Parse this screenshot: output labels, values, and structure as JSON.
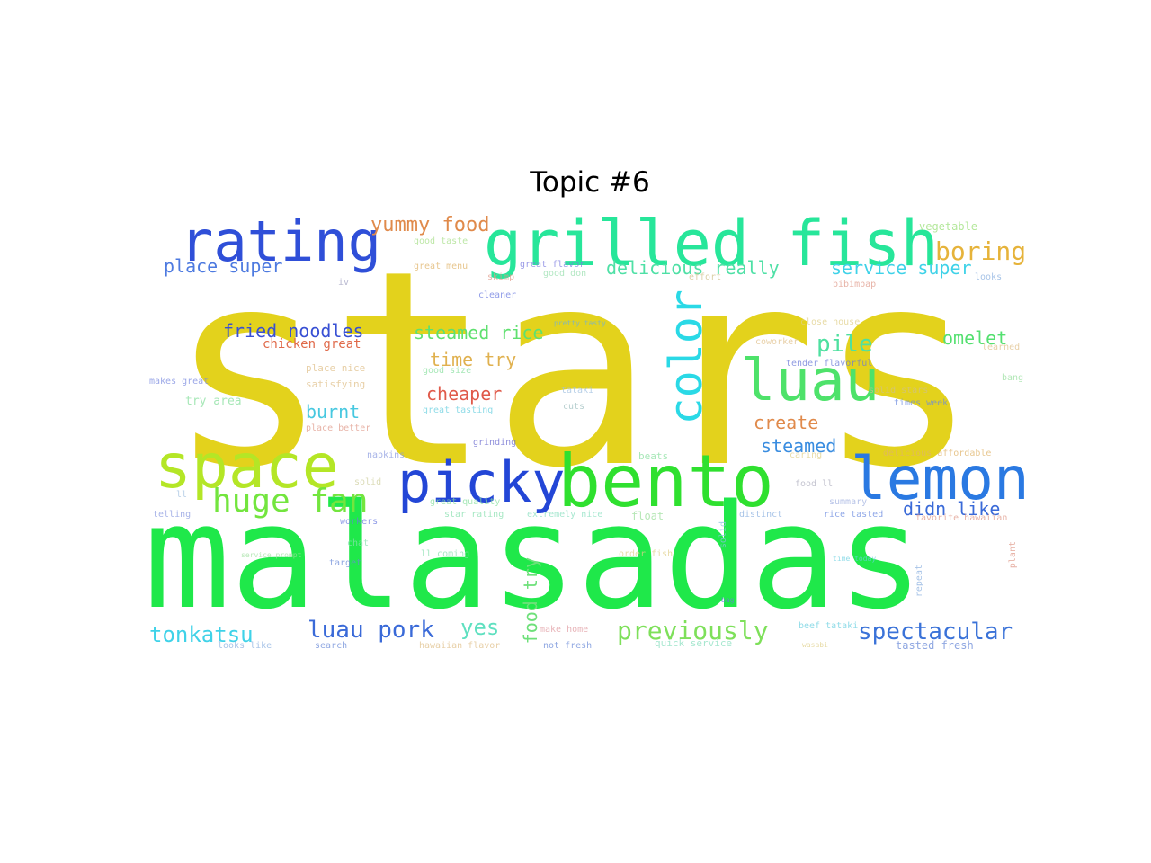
{
  "title": "Topic #6",
  "words": [
    {
      "text": "stars",
      "color": "#e3d21c"
    },
    {
      "text": "malasadas",
      "color": "#1fe84a"
    },
    {
      "text": "grilled fish",
      "color": "#27e69a"
    },
    {
      "text": "rating",
      "color": "#2f4fd8"
    },
    {
      "text": "space",
      "color": "#b4e626"
    },
    {
      "text": "picky",
      "color": "#2346d6"
    },
    {
      "text": "bento",
      "color": "#2fe02f"
    },
    {
      "text": "lemon",
      "color": "#2a79e2"
    },
    {
      "text": "luau",
      "color": "#4ee26a"
    },
    {
      "text": "color",
      "color": "#2ad9e6"
    },
    {
      "text": "huge fan",
      "color": "#73e53e"
    },
    {
      "text": "boring",
      "color": "#e6b33a"
    },
    {
      "text": "yummy food",
      "color": "#e08a4b"
    },
    {
      "text": "place super",
      "color": "#4d7ae0"
    },
    {
      "text": "delicious really",
      "color": "#4fe0a6"
    },
    {
      "text": "service super",
      "color": "#3fd2e8"
    },
    {
      "text": "fried noodles",
      "color": "#3850d4"
    },
    {
      "text": "steamed rice",
      "color": "#5fe06f"
    },
    {
      "text": "pile",
      "color": "#4ee0a0"
    },
    {
      "text": "omelet",
      "color": "#54e070"
    },
    {
      "text": "time try",
      "color": "#e0b14f"
    },
    {
      "text": "cheaper",
      "color": "#e05a4a"
    },
    {
      "text": "burnt",
      "color": "#47c8e0"
    },
    {
      "text": "create",
      "color": "#e08a4b"
    },
    {
      "text": "steamed",
      "color": "#3a8de0"
    },
    {
      "text": "didn like",
      "color": "#3a6ad8"
    },
    {
      "text": "tonkatsu",
      "color": "#3fd2e8"
    },
    {
      "text": "luau pork",
      "color": "#3a6ad8"
    },
    {
      "text": "yes",
      "color": "#5fe0c0"
    },
    {
      "text": "food try",
      "color": "#6ee07a"
    },
    {
      "text": "previously",
      "color": "#7ee05a"
    },
    {
      "text": "spectacular",
      "color": "#3a72d8"
    },
    {
      "text": "chicken great",
      "color": "#e06a4a"
    },
    {
      "text": "vegetable",
      "color": "#9be07a"
    },
    {
      "text": "good taste",
      "color": "#a8e08a"
    },
    {
      "text": "great menu",
      "color": "#e0b46a"
    },
    {
      "text": "great flavor",
      "color": "#7a7ae0"
    },
    {
      "text": "good don",
      "color": "#9ae0b0"
    },
    {
      "text": "skimp",
      "color": "#e09a8a"
    },
    {
      "text": "cleaner",
      "color": "#6a7ae0"
    },
    {
      "text": "effort",
      "color": "#d0c08a"
    },
    {
      "text": "looks",
      "color": "#8ab0e0"
    },
    {
      "text": "bibimbap",
      "color": "#e09a8a"
    },
    {
      "text": "iv",
      "color": "#a0a0c0"
    },
    {
      "text": "pretty tasty",
      "color": "#6ab0e0"
    },
    {
      "text": "close house",
      "color": "#e0d08a"
    },
    {
      "text": "coworker",
      "color": "#e0c08a"
    },
    {
      "text": "learned",
      "color": "#e0c08a"
    },
    {
      "text": "place nice",
      "color": "#e0c08a"
    },
    {
      "text": "good size",
      "color": "#8ae0a0"
    },
    {
      "text": "satisfying",
      "color": "#e0c08a"
    },
    {
      "text": "makes great",
      "color": "#7a8ae0"
    },
    {
      "text": "tender flavorful",
      "color": "#6a7ad8"
    },
    {
      "text": "bang",
      "color": "#9ae0a0"
    },
    {
      "text": "try area",
      "color": "#8ae0a0"
    },
    {
      "text": "tataki",
      "color": "#a0c0e0"
    },
    {
      "text": "solid stars",
      "color": "#d0c08a"
    },
    {
      "text": "times week",
      "color": "#6a8ae0"
    },
    {
      "text": "great tasting",
      "color": "#6ad0e0"
    },
    {
      "text": "cuts",
      "color": "#a0c0c0"
    },
    {
      "text": "place better",
      "color": "#e09a8a"
    },
    {
      "text": "grinding",
      "color": "#6a6ad0"
    },
    {
      "text": "beats",
      "color": "#8ae0a0"
    },
    {
      "text": "delicious affordable",
      "color": "#e0b46a"
    },
    {
      "text": "napkins",
      "color": "#8a9ae0"
    },
    {
      "text": "caring",
      "color": "#e0d08a"
    },
    {
      "text": "solid",
      "color": "#d0d0a0"
    },
    {
      "text": "food ll",
      "color": "#b0b0c0"
    },
    {
      "text": "summary",
      "color": "#a0b0e0"
    },
    {
      "text": "great quality",
      "color": "#8ae0a0"
    },
    {
      "text": "ll",
      "color": "#a0c0e0"
    },
    {
      "text": "telling",
      "color": "#8a9ae0"
    },
    {
      "text": "star rating",
      "color": "#8ae0b0"
    },
    {
      "text": "extremely nice",
      "color": "#8ae0c0"
    },
    {
      "text": "float",
      "color": "#a0e0a0"
    },
    {
      "text": "distinct",
      "color": "#8ab0e0"
    },
    {
      "text": "rice tasted",
      "color": "#6a8ae0"
    },
    {
      "text": "favorite hawaiian",
      "color": "#e09a8a"
    },
    {
      "text": "workers",
      "color": "#6a7ae0"
    },
    {
      "text": "chat",
      "color": "#8ae0b0"
    },
    {
      "text": "target",
      "color": "#6a8ad8"
    },
    {
      "text": "service prompt",
      "color": "#a0e0a0"
    },
    {
      "text": "ll coming",
      "color": "#8ae0b0"
    },
    {
      "text": "order fish",
      "color": "#e0d08a"
    },
    {
      "text": "time today",
      "color": "#6ad0e0"
    },
    {
      "text": "plant",
      "color": "#e09a8a"
    },
    {
      "text": "hawaiian flavor",
      "color": "#e0c08a"
    },
    {
      "text": "make home",
      "color": "#e09aa0"
    },
    {
      "text": "repeat",
      "color": "#8ab0e0"
    },
    {
      "text": "beef tataki",
      "color": "#6ad0e0"
    },
    {
      "text": "looks like",
      "color": "#8ab0e0"
    },
    {
      "text": "search",
      "color": "#6a8ad8"
    },
    {
      "text": "not fresh",
      "color": "#6a8ad8"
    },
    {
      "text": "quick service",
      "color": "#8ae0c0"
    },
    {
      "text": "tasted fresh",
      "color": "#6a8ad8"
    },
    {
      "text": "wasabi",
      "color": "#e0d08a"
    },
    {
      "text": "bag",
      "color": "#6a7ae0"
    },
    {
      "text": "solid",
      "color": "#8ac0e0"
    }
  ]
}
